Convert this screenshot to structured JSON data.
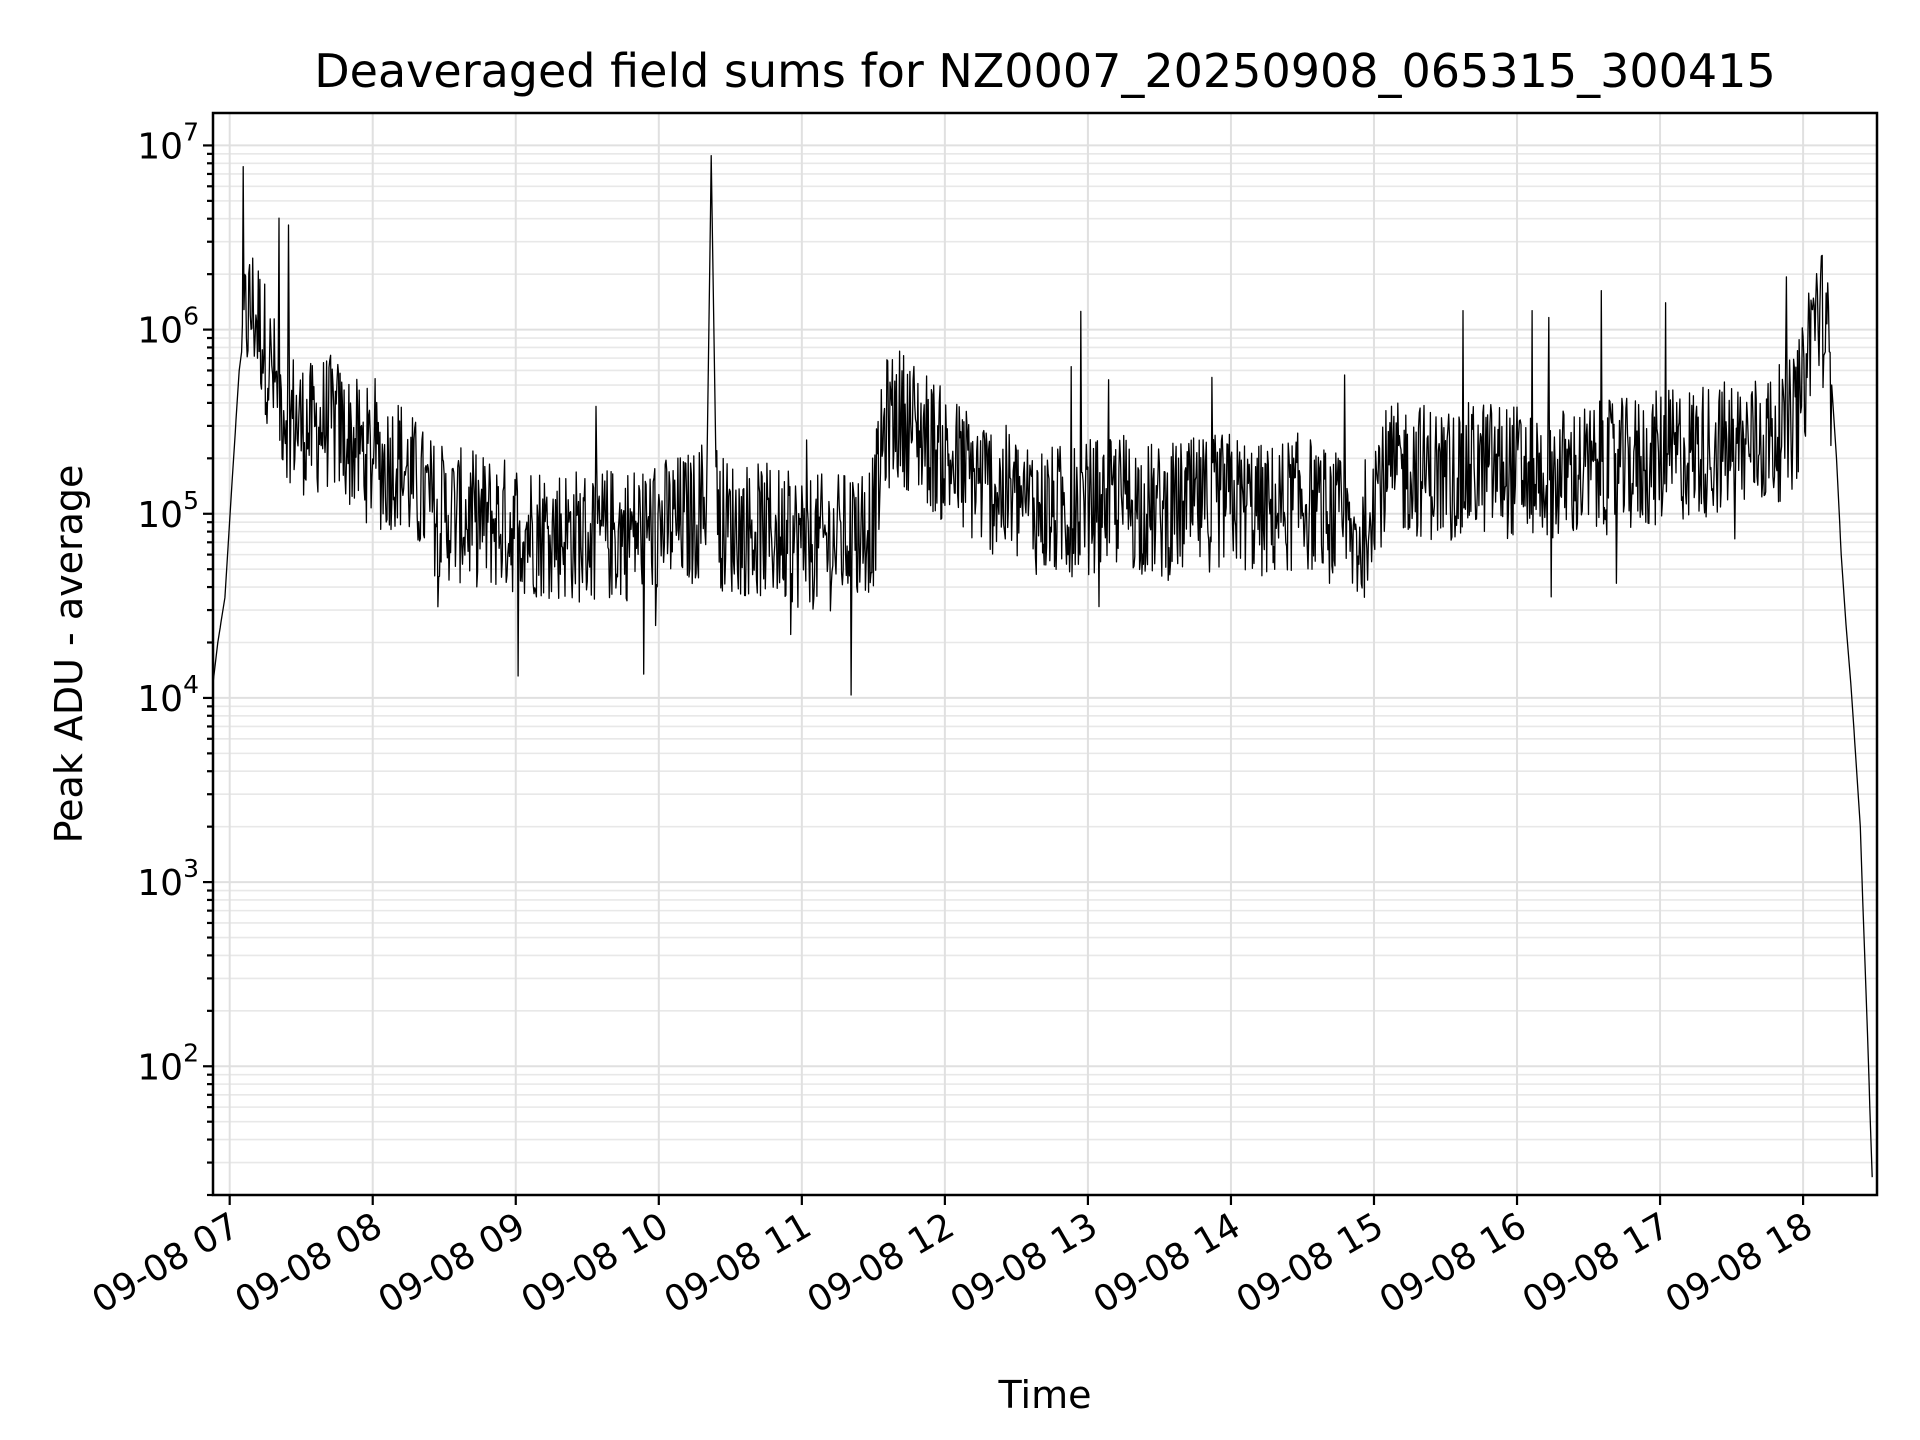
{
  "chart_data": {
    "type": "line",
    "title": "Deaveraged field sums for NZ0007_20250908_065315_300415",
    "xlabel": "Time",
    "ylabel": "Peak ADU - average",
    "yscale": "log",
    "ylim": [
      20,
      15000000
    ],
    "xlim": [
      "2025-09-08 06:53",
      "2025-09-08 18:31"
    ],
    "grid": true,
    "x_tick_labels": [
      "09-08 07",
      "09-08 08",
      "09-08 09",
      "09-08 10",
      "09-08 11",
      "09-08 12",
      "09-08 13",
      "09-08 14",
      "09-08 15",
      "09-08 16",
      "09-08 17",
      "09-08 18"
    ],
    "y_ticks": [
      {
        "base": "10",
        "exp": "2"
      },
      {
        "base": "10",
        "exp": "3"
      },
      {
        "base": "10",
        "exp": "4"
      },
      {
        "base": "10",
        "exp": "5"
      },
      {
        "base": "10",
        "exp": "6"
      },
      {
        "base": "10",
        "exp": "7"
      }
    ],
    "series": [
      {
        "color": "#000000",
        "x": [
          "2025-09-08 06:53",
          "2025-09-08 06:55",
          "2025-09-08 06:58",
          "2025-09-08 07:01",
          "2025-09-08 07:04",
          "2025-09-08 07:07",
          "2025-09-08 07:10",
          "2025-09-08 07:13",
          "2025-09-08 07:16",
          "2025-09-08 07:20",
          "2025-09-08 07:25",
          "2025-09-08 07:30",
          "2025-09-08 07:35",
          "2025-09-08 07:40",
          "2025-09-08 07:45",
          "2025-09-08 07:50",
          "2025-09-08 07:55",
          "2025-09-08 08:00",
          "2025-09-08 08:05",
          "2025-09-08 08:10",
          "2025-09-08 08:15",
          "2025-09-08 08:20",
          "2025-09-08 08:25",
          "2025-09-08 08:30",
          "2025-09-08 08:40",
          "2025-09-08 08:50",
          "2025-09-08 09:00",
          "2025-09-08 09:15",
          "2025-09-08 09:30",
          "2025-09-08 09:45",
          "2025-09-08 10:00",
          "2025-09-08 10:15",
          "2025-09-08 10:20",
          "2025-09-08 10:22",
          "2025-09-08 10:24",
          "2025-09-08 10:26",
          "2025-09-08 10:30",
          "2025-09-08 10:45",
          "2025-09-08 10:55",
          "2025-09-08 11:00",
          "2025-09-08 11:15",
          "2025-09-08 11:30",
          "2025-09-08 11:35",
          "2025-09-08 11:40",
          "2025-09-08 11:50",
          "2025-09-08 12:00",
          "2025-09-08 12:15",
          "2025-09-08 12:30",
          "2025-09-08 12:45",
          "2025-09-08 13:00",
          "2025-09-08 13:15",
          "2025-09-08 13:30",
          "2025-09-08 13:45",
          "2025-09-08 14:00",
          "2025-09-08 14:15",
          "2025-09-08 14:30",
          "2025-09-08 14:45",
          "2025-09-08 14:50",
          "2025-09-08 14:55",
          "2025-09-08 15:00",
          "2025-09-08 15:15",
          "2025-09-08 15:30",
          "2025-09-08 15:45",
          "2025-09-08 16:00",
          "2025-09-08 16:15",
          "2025-09-08 16:30",
          "2025-09-08 16:45",
          "2025-09-08 17:00",
          "2025-09-08 17:15",
          "2025-09-08 17:30",
          "2025-09-08 17:45",
          "2025-09-08 17:55",
          "2025-09-08 18:00",
          "2025-09-08 18:03",
          "2025-09-08 18:06",
          "2025-09-08 18:08",
          "2025-09-08 18:10",
          "2025-09-08 18:12",
          "2025-09-08 18:14",
          "2025-09-08 18:16",
          "2025-09-08 18:18",
          "2025-09-08 18:20",
          "2025-09-08 18:22",
          "2025-09-08 18:24",
          "2025-09-08 18:25",
          "2025-09-08 18:26",
          "2025-09-08 18:27",
          "2025-09-08 18:28",
          "2025-09-08 18:29"
        ],
        "y": [
          12000,
          20000,
          35000,
          150000,
          600000,
          1200000,
          1300000,
          1000000,
          700000,
          450000,
          350000,
          300000,
          280000,
          320000,
          300000,
          250000,
          220000,
          200000,
          180000,
          200000,
          160000,
          130000,
          110000,
          100000,
          95000,
          90000,
          85000,
          80000,
          75000,
          78000,
          85000,
          95000,
          120000,
          8800000,
          180000,
          90000,
          85000,
          80000,
          75000,
          70000,
          70000,
          90000,
          300000,
          350000,
          280000,
          200000,
          150000,
          120000,
          100000,
          110000,
          120000,
          100000,
          110000,
          120000,
          100000,
          120000,
          90000,
          70000,
          70000,
          150000,
          180000,
          160000,
          180000,
          170000,
          160000,
          170000,
          180000,
          200000,
          220000,
          230000,
          250000,
          300000,
          450000,
          1000000,
          1300000,
          1200000,
          900000,
          500000,
          200000,
          60000,
          25000,
          12000,
          5000,
          2000,
          800,
          350,
          150,
          60,
          25
        ]
      }
    ]
  }
}
